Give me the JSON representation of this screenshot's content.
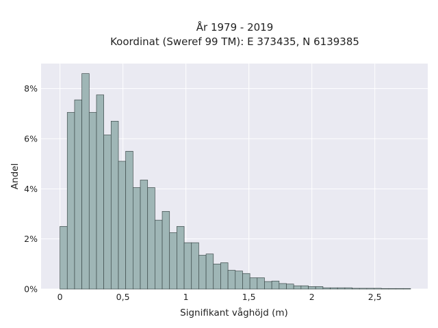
{
  "chart_data": {
    "type": "bar",
    "title": "År 1979 - 2019",
    "subtitle": "Koordinat (Sweref 99 TM): E 373435, N 6139385",
    "xlabel": "Signifikant våghöjd (m)",
    "ylabel": "Andel",
    "xlim": [
      -0.15,
      2.92
    ],
    "ylim": [
      0,
      9.0
    ],
    "grid": true,
    "bin_width": 0.058,
    "bin_start": 0,
    "x_ticks": [
      {
        "value": 0,
        "label": "0"
      },
      {
        "value": 0.5,
        "label": "0,5"
      },
      {
        "value": 1,
        "label": "1"
      },
      {
        "value": 1.5,
        "label": "1,5"
      },
      {
        "value": 2,
        "label": "2"
      },
      {
        "value": 2.5,
        "label": "2,5"
      }
    ],
    "y_ticks": [
      {
        "value": 0,
        "label": "0%"
      },
      {
        "value": 2,
        "label": "2%"
      },
      {
        "value": 4,
        "label": "4%"
      },
      {
        "value": 6,
        "label": "6%"
      },
      {
        "value": 8,
        "label": "8%"
      }
    ],
    "values": [
      2.5,
      7.05,
      7.55,
      8.6,
      7.05,
      7.75,
      6.15,
      6.7,
      5.1,
      5.5,
      4.05,
      4.35,
      4.05,
      2.75,
      3.1,
      2.25,
      2.5,
      1.85,
      1.85,
      1.35,
      1.4,
      1.0,
      1.05,
      0.75,
      0.72,
      0.62,
      0.45,
      0.45,
      0.3,
      0.32,
      0.22,
      0.2,
      0.13,
      0.13,
      0.1,
      0.1,
      0.05,
      0.05,
      0.05,
      0.05,
      0.03,
      0.03,
      0.03,
      0.03,
      0.02,
      0.02,
      0.02,
      0.02
    ],
    "colors": {
      "bar_fill": "#9fb6b6",
      "bar_edge": "#3d4a4a",
      "plot_bg": "#eaeaf2"
    }
  }
}
